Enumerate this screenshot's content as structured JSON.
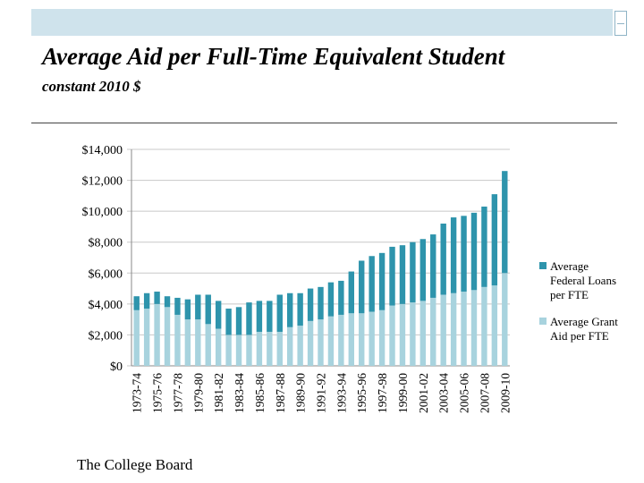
{
  "title": "Average Aid per Full-Time Equivalent Student",
  "subtitle": "constant 2010 $",
  "source": "The College Board",
  "colors": {
    "loans": "#2e94ac",
    "grants": "#a8d3de",
    "band": "#cfe3ec"
  },
  "chart_data": {
    "type": "bar",
    "stacked": true,
    "title": "Average Aid per Full-Time Equivalent Student",
    "subtitle": "constant 2010 $",
    "ylim": [
      0,
      14000
    ],
    "yticks": [
      0,
      2000,
      4000,
      6000,
      8000,
      10000,
      12000,
      14000
    ],
    "ytick_labels": [
      "$0",
      "$2,000",
      "$4,000",
      "$6,000",
      "$8,000",
      "$10,000",
      "$12,000",
      "$14,000"
    ],
    "grid": true,
    "legend_position": "right",
    "categories": [
      "1973-74",
      "1974-75",
      "1975-76",
      "1976-77",
      "1977-78",
      "1978-79",
      "1979-80",
      "1980-81",
      "1981-82",
      "1982-83",
      "1983-84",
      "1984-85",
      "1985-86",
      "1986-87",
      "1987-88",
      "1988-89",
      "1989-90",
      "1990-91",
      "1991-92",
      "1992-93",
      "1993-94",
      "1994-95",
      "1995-96",
      "1996-97",
      "1997-98",
      "1998-99",
      "1999-00",
      "2000-01",
      "2001-02",
      "2002-03",
      "2003-04",
      "2004-05",
      "2005-06",
      "2006-07",
      "2007-08",
      "2008-09",
      "2009-10"
    ],
    "tick_labels": [
      "1973-74",
      "1975-76",
      "1977-78",
      "1979-80",
      "1981-82",
      "1983-84",
      "1985-86",
      "1987-88",
      "1989-90",
      "1991-92",
      "1993-94",
      "1995-96",
      "1997-98",
      "1999-00",
      "2001-02",
      "2003-04",
      "2005-06",
      "2007-08",
      "2009-10"
    ],
    "series": [
      {
        "name": "Average Grant Aid per FTE",
        "values": [
          3600,
          3700,
          4000,
          3800,
          3300,
          3000,
          3000,
          2700,
          2400,
          2000,
          2000,
          2000,
          2200,
          2200,
          2200,
          2500,
          2600,
          2900,
          3000,
          3200,
          3300,
          3400,
          3400,
          3500,
          3600,
          3900,
          4000,
          4100,
          4200,
          4400,
          4600,
          4700,
          4800,
          4900,
          5100,
          5200,
          6000
        ]
      },
      {
        "name": "Average Federal Loans per FTE",
        "values": [
          900,
          1000,
          800,
          700,
          1100,
          1300,
          1600,
          1900,
          1800,
          1700,
          1800,
          2100,
          2000,
          2000,
          2400,
          2200,
          2100,
          2100,
          2100,
          2200,
          2200,
          2700,
          3400,
          3600,
          3700,
          3800,
          3800,
          3900,
          4000,
          4100,
          4600,
          4900,
          4900,
          5000,
          5200,
          5900,
          6600
        ]
      }
    ]
  }
}
